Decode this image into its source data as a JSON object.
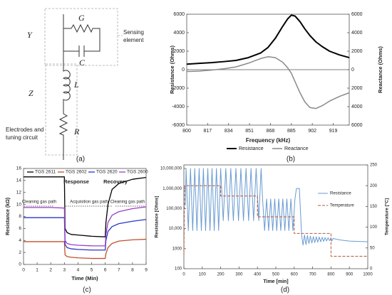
{
  "circuit": {
    "block_labels": [
      "Y",
      "Z"
    ],
    "components": [
      "G",
      "C",
      "L",
      "R"
    ],
    "sensing_label": [
      "Sensing",
      "element"
    ],
    "electrode_label": [
      "Electrodes and",
      "tuning circuit"
    ],
    "caption": "(a)"
  },
  "chart_data": [
    {
      "type": "line",
      "caption": "(b)",
      "x_label": "Frequency (kHz)",
      "y_label": "Resistance (Ohms)",
      "y2_label": "Reactance (Ohms)",
      "x": [
        800,
        810,
        820,
        830,
        840,
        850,
        860,
        866,
        872,
        878,
        882,
        885,
        888,
        892,
        896,
        900,
        905,
        910,
        916,
        924,
        932
      ],
      "xlim": [
        800,
        932
      ],
      "xticks": [
        800,
        817,
        834,
        851,
        868,
        885,
        902,
        919
      ],
      "ylim": [
        -6000,
        6000
      ],
      "yticks": [
        -6000,
        -4000,
        -2000,
        0,
        2000,
        4000,
        6000
      ],
      "y2lim": [
        -6000,
        6000
      ],
      "y2ticks": [
        {
          "value": -6000,
          "label": "6000"
        },
        {
          "value": -4000,
          "label": "4000"
        },
        {
          "value": -2000,
          "label": "2000"
        },
        0,
        2000,
        4000,
        6000
      ],
      "zero_line": true,
      "legend": "bottom",
      "series": [
        {
          "name": "Resistance",
          "color": "#000000",
          "width": 2,
          "values": [
            600,
            680,
            760,
            870,
            1000,
            1300,
            1800,
            2400,
            3400,
            4700,
            5500,
            5900,
            5800,
            5200,
            4400,
            3700,
            3000,
            2500,
            2000,
            1600,
            1300
          ]
        },
        {
          "name": "Reactance",
          "color": "#8a8a8a",
          "width": 1.5,
          "axis": "y2",
          "values": [
            -200,
            -150,
            -50,
            100,
            300,
            700,
            1200,
            1400,
            1300,
            800,
            200,
            -400,
            -1300,
            -2500,
            -3500,
            -4100,
            -4200,
            -3900,
            -3400,
            -2900,
            -2500
          ]
        }
      ]
    },
    {
      "type": "line",
      "caption": "(c)",
      "x_label": "Time (Min)",
      "y_label": "Resistance (kΩ)",
      "x": [
        0,
        1,
        2,
        3,
        3.05,
        3.2,
        3.5,
        4,
        5,
        6,
        6.05,
        6.2,
        6.5,
        7,
        8,
        9
      ],
      "xlim": [
        0,
        9
      ],
      "xticks": [
        0,
        1,
        2,
        3,
        4,
        5,
        6,
        7,
        8,
        9
      ],
      "ylim": [
        0,
        16
      ],
      "yticks": [
        0,
        2,
        4,
        6,
        8,
        10,
        12,
        14,
        16
      ],
      "legend": "top",
      "annotations": [
        "Response",
        "Recovery",
        "Cleaning gas path",
        "Acquisition gas path",
        "Cleaning gas path"
      ],
      "series": [
        {
          "name": "TGS 2611",
          "color": "#000000",
          "width": 1.3,
          "values": [
            14.6,
            14.6,
            14.6,
            14.6,
            6,
            5.3,
            5,
            4.9,
            4.7,
            4.6,
            7,
            10,
            12.5,
            13.5,
            14.2,
            14.5
          ]
        },
        {
          "name": "TGS 2602",
          "color": "#c0502d",
          "width": 1.3,
          "values": [
            3.8,
            3.8,
            3.8,
            3.8,
            1.6,
            1.3,
            1.2,
            1.1,
            1.0,
            1.0,
            1.8,
            2.8,
            3.5,
            3.9,
            4.1,
            4.2
          ]
        },
        {
          "name": "TGS 2620",
          "color": "#2a35c8",
          "width": 1.3,
          "values": [
            7.8,
            7.8,
            7.8,
            7.8,
            3.3,
            2.8,
            2.6,
            2.5,
            2.4,
            2.4,
            4,
            5.5,
            6.3,
            6.8,
            7.2,
            7.5
          ]
        },
        {
          "name": "TGS 2600",
          "color": "#9b3ec8",
          "width": 1.3,
          "values": [
            9.5,
            9.5,
            9.5,
            9.4,
            4,
            3.5,
            3.3,
            3.2,
            3.1,
            3.1,
            5,
            7,
            8.2,
            8.8,
            9.3,
            9.6
          ]
        }
      ]
    },
    {
      "type": "line",
      "caption": "(d)",
      "x_label": "Time [min]",
      "y_label": "Resistance [Ohms]",
      "y2_label": "Temperature [°C]",
      "xlim": [
        0,
        1000
      ],
      "xticks": [
        0,
        100,
        200,
        300,
        400,
        500,
        600,
        700,
        800,
        900,
        1000
      ],
      "y_log": true,
      "ylim": [
        100,
        15000000
      ],
      "yticks": [
        100,
        1000,
        {
          "value": 10000,
          "label": "10,000"
        },
        {
          "value": 100000,
          "label": "100,000"
        },
        {
          "value": 1000000,
          "label": "1,000,000"
        },
        {
          "value": 10000000,
          "label": "10,000,000"
        }
      ],
      "y2lim": [
        0,
        250
      ],
      "y2ticks": [
        0,
        50,
        100,
        150,
        200,
        250
      ],
      "legend": "right",
      "series": [
        {
          "name": "Resistance",
          "color": "#6a9bd1",
          "width": 1,
          "x": [
            0,
            8,
            12,
            24,
            36,
            48,
            59,
            71,
            83,
            95,
            106,
            118,
            130,
            142,
            153,
            165,
            177,
            189,
            200,
            214,
            228,
            242,
            255,
            269,
            283,
            297,
            310,
            324,
            338,
            352,
            365,
            379,
            393,
            407,
            420,
            428,
            439,
            450,
            461,
            472,
            483,
            494,
            505,
            516,
            527,
            538,
            549,
            560,
            571,
            582,
            593,
            604,
            612,
            628,
            640,
            648,
            656,
            664,
            672,
            680,
            688,
            696,
            704,
            712,
            720,
            728,
            736,
            744,
            752,
            760,
            768,
            776,
            784,
            792,
            800,
            804,
            812,
            850,
            900,
            1000
          ],
          "values": [
            150000,
            150000,
            10000000,
            8000,
            10000000,
            8000,
            10000000,
            8000,
            10000000,
            8000,
            10000000,
            8000,
            10000000,
            8000,
            10000000,
            8000,
            10000000,
            8000,
            10000000,
            25000,
            10000000,
            25000,
            10000000,
            25000,
            10000000,
            25000,
            10000000,
            25000,
            10000000,
            25000,
            10000000,
            25000,
            10000000,
            25000,
            10000000,
            300000,
            8000,
            300000,
            8000,
            300000,
            8000,
            300000,
            8000,
            300000,
            8000,
            300000,
            8000,
            300000,
            8000,
            300000,
            8000,
            300000,
            1000000,
            1000000,
            5000,
            1500,
            4800,
            1600,
            4500,
            1800,
            4200,
            1900,
            4000,
            2000,
            3900,
            2100,
            3800,
            2200,
            3700,
            2300,
            3600,
            2400,
            3500,
            2500,
            3400,
            2400,
            3200,
            2700,
            2400,
            2200
          ]
        },
        {
          "name": "Temperature",
          "color": "#b05a3c",
          "width": 1,
          "dash": true,
          "axis": "y2",
          "x": [
            0,
            4,
            200,
            200,
            400,
            400,
            600,
            600,
            800,
            800,
            1000
          ],
          "values": [
            30,
            200,
            200,
            175,
            175,
            125,
            125,
            85,
            85,
            30,
            30
          ]
        }
      ]
    }
  ]
}
